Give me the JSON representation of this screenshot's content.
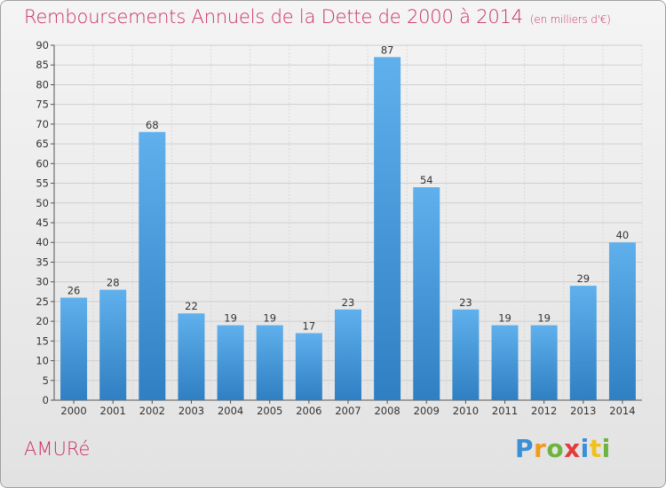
{
  "title": "Remboursements Annuels de la Dette de 2000 à 2014",
  "title_unit": "(en milliers d'€)",
  "commune": "AMURé",
  "logo": {
    "text": "Proxiti",
    "letters": [
      {
        "ch": "P",
        "color": "#3a8fd6"
      },
      {
        "ch": "r",
        "color": "#f29a1d"
      },
      {
        "ch": "o",
        "color": "#6cb33f"
      },
      {
        "ch": "x",
        "color": "#e23b3b"
      },
      {
        "ch": "i",
        "color": "#3a8fd6"
      },
      {
        "ch": "t",
        "color": "#f2c01d"
      },
      {
        "ch": "i",
        "color": "#6cb33f"
      }
    ]
  },
  "colors": {
    "bar_top": "#5fb0ec",
    "bar_bottom": "#2f7fc3",
    "title": "#c9325f"
  },
  "chart_data": {
    "type": "bar",
    "title": "Remboursements Annuels de la Dette de 2000 à 2014",
    "categories": [
      "2000",
      "2001",
      "2002",
      "2003",
      "2004",
      "2005",
      "2006",
      "2007",
      "2008",
      "2009",
      "2010",
      "2011",
      "2012",
      "2013",
      "2014"
    ],
    "values": [
      26,
      28,
      68,
      22,
      19,
      19,
      17,
      23,
      87,
      54,
      23,
      19,
      19,
      29,
      40
    ],
    "ylim": [
      0,
      90
    ],
    "yticks": [
      0,
      5,
      10,
      15,
      20,
      25,
      30,
      35,
      40,
      45,
      50,
      55,
      60,
      65,
      70,
      75,
      80,
      85,
      90
    ],
    "grid": true,
    "data_labels": true
  }
}
